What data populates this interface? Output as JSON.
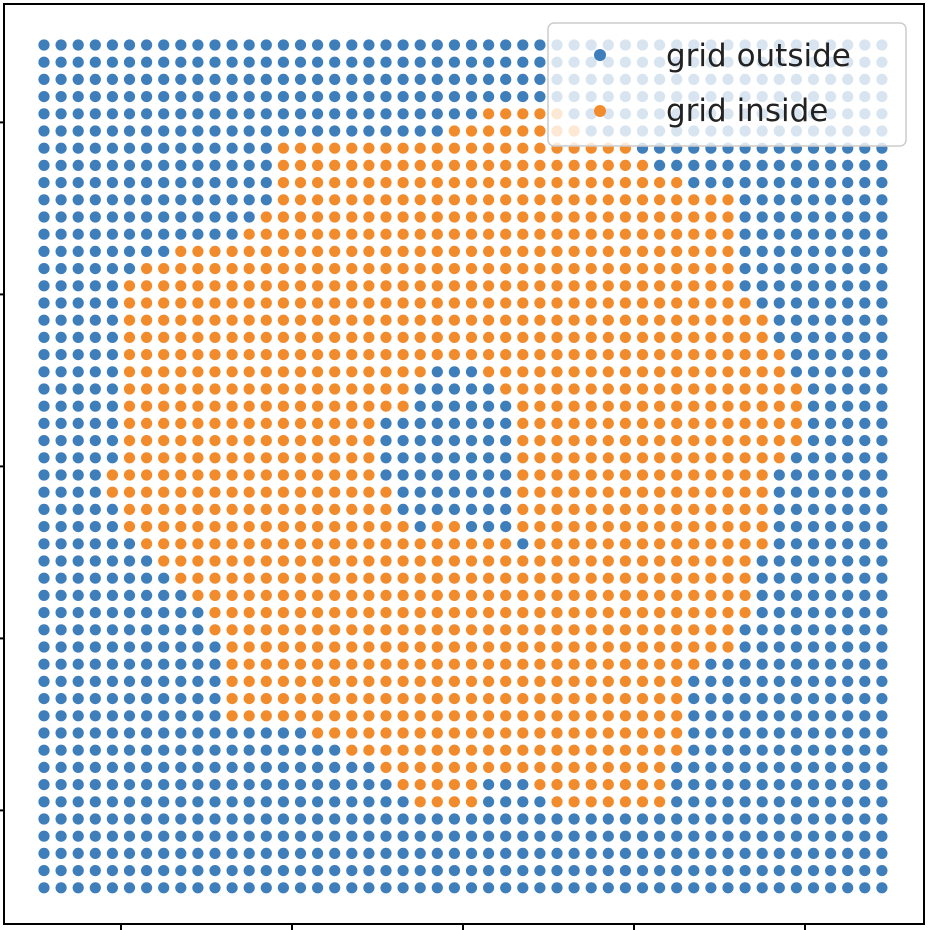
{
  "chart_data": {
    "type": "scatter",
    "title": "",
    "xlabel": "",
    "ylabel": "",
    "grid_size": 50,
    "x_range": [
      0,
      49
    ],
    "y_range": [
      0,
      49
    ],
    "xlim": [
      -2,
      51
    ],
    "ylim": [
      -2,
      51
    ],
    "x_ticks": [
      4.5,
      14.5,
      24.5,
      34.5,
      44.5
    ],
    "y_ticks": [
      4.5,
      14.5,
      24.5,
      34.5,
      44.5
    ],
    "x_tick_labels": false,
    "y_tick_labels": false,
    "grid": false,
    "legend_position": "top-right",
    "series": [
      {
        "name": "grid outside",
        "color": "#3d7ebb",
        "label_key": "outside"
      },
      {
        "name": "grid inside",
        "color": "#f28b2c",
        "label_key": "inside"
      }
    ],
    "inside_region": {
      "note_rows_from_top": "row index 0 = top row (y=49)",
      "runs": [
        [],
        [],
        [],
        [],
        [
          [
            26,
            30
          ]
        ],
        [
          [
            24,
            31
          ]
        ],
        [
          [
            14,
            34
          ]
        ],
        [
          [
            14,
            35
          ]
        ],
        [
          [
            14,
            37
          ]
        ],
        [
          [
            14,
            40
          ]
        ],
        [
          [
            13,
            40
          ]
        ],
        [
          [
            12,
            40
          ]
        ],
        [
          [
            8,
            40
          ]
        ],
        [
          [
            6,
            40
          ]
        ],
        [
          [
            5,
            40
          ]
        ],
        [
          [
            5,
            41
          ]
        ],
        [
          [
            5,
            42
          ]
        ],
        [
          [
            5,
            42
          ]
        ],
        [
          [
            5,
            43
          ]
        ],
        [
          [
            5,
            22
          ],
          [
            26,
            43
          ]
        ],
        [
          [
            5,
            21
          ],
          [
            27,
            44
          ]
        ],
        [
          [
            5,
            21
          ],
          [
            28,
            44
          ]
        ],
        [
          [
            5,
            19
          ],
          [
            28,
            44
          ]
        ],
        [
          [
            5,
            19
          ],
          [
            28,
            44
          ]
        ],
        [
          [
            5,
            19
          ],
          [
            28,
            43
          ]
        ],
        [
          [
            4,
            19
          ],
          [
            28,
            42
          ]
        ],
        [
          [
            4,
            20
          ],
          [
            28,
            42
          ]
        ],
        [
          [
            5,
            20
          ],
          [
            28,
            42
          ]
        ],
        [
          [
            5,
            21
          ],
          [
            23,
            24
          ],
          [
            28,
            42
          ]
        ],
        [
          [
            6,
            27
          ],
          [
            29,
            42
          ]
        ],
        [
          [
            7,
            41
          ]
        ],
        [
          [
            8,
            41
          ]
        ],
        [
          [
            9,
            41
          ]
        ],
        [
          [
            10,
            41
          ]
        ],
        [
          [
            10,
            40
          ]
        ],
        [
          [
            11,
            40
          ]
        ],
        [
          [
            11,
            38
          ]
        ],
        [
          [
            11,
            37
          ]
        ],
        [
          [
            11,
            37
          ]
        ],
        [
          [
            11,
            37
          ]
        ],
        [
          [
            16,
            37
          ]
        ],
        [
          [
            18,
            37
          ]
        ],
        [
          [
            20,
            36
          ]
        ],
        [
          [
            21,
            25
          ],
          [
            29,
            36
          ]
        ],
        [
          [
            22,
            25
          ],
          [
            30,
            36
          ]
        ],
        [],
        [],
        [],
        [],
        []
      ]
    }
  },
  "legend": {
    "outside": "grid outside",
    "inside": "grid inside"
  },
  "colors": {
    "outside": "#3d7ebb",
    "inside": "#f28b2c",
    "frame": "#000000",
    "legend_border": "#cccccc"
  }
}
